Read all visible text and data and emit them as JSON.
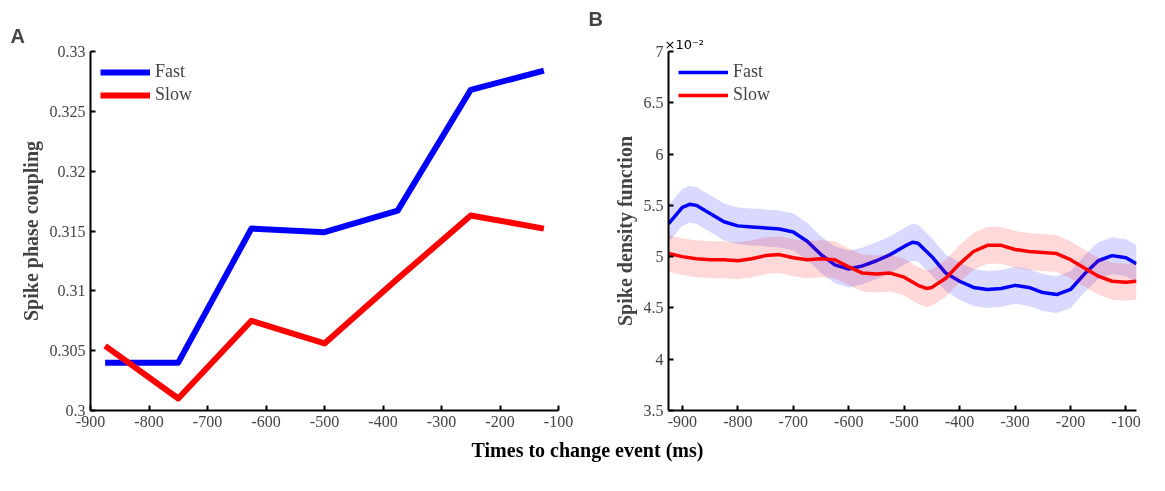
{
  "chart_data": [
    {
      "type": "line",
      "title": "A",
      "xlabel": "Times to change event (ms)",
      "ylabel": "Spike phase coupling",
      "x": [
        -875,
        -750,
        -625,
        -500,
        -375,
        -250,
        -125
      ],
      "series": [
        {
          "name": "Fast",
          "color": "#0000ff",
          "values": [
            0.304,
            0.304,
            0.3152,
            0.3149,
            0.3167,
            0.3268,
            0.3284
          ]
        },
        {
          "name": "Slow",
          "color": "#ff0000",
          "values": [
            0.3054,
            0.301,
            0.3075,
            0.3056,
            0.311,
            0.3163,
            0.3152
          ]
        }
      ],
      "xlim": [
        -900,
        -100
      ],
      "xticks": [
        -900,
        -800,
        -700,
        -600,
        -500,
        -400,
        -300,
        -200,
        -100
      ],
      "ylim": [
        0.3,
        0.33
      ],
      "yticks": [
        0.3,
        0.305,
        0.31,
        0.315,
        0.32,
        0.325,
        0.33
      ],
      "legend": "top left",
      "grid": false
    },
    {
      "type": "line",
      "title": "B",
      "ylabel": "Spike density function",
      "annotations": [
        "×10⁻²"
      ],
      "series": [
        {
          "name": "Fast",
          "color": "#0000ff",
          "x": [
            -925,
            -900,
            -887,
            -875,
            -850,
            -825,
            -800,
            -775,
            -750,
            -725,
            -700,
            -675,
            -650,
            -625,
            -600,
            -575,
            -550,
            -525,
            -500,
            -485,
            -475,
            -450,
            -425,
            -400,
            -375,
            -350,
            -325,
            -300,
            -275,
            -250,
            -225,
            -200,
            -175,
            -150,
            -125,
            -100,
            -81
          ],
          "values": [
            5.32,
            5.48,
            5.51,
            5.5,
            5.42,
            5.34,
            5.3,
            5.29,
            5.28,
            5.27,
            5.24,
            5.15,
            5.02,
            4.92,
            4.88,
            4.91,
            4.96,
            5.02,
            5.1,
            5.14,
            5.13,
            5.0,
            4.84,
            4.76,
            4.7,
            4.68,
            4.69,
            4.72,
            4.7,
            4.65,
            4.63,
            4.68,
            4.83,
            4.96,
            5.01,
            4.99,
            4.93
          ],
          "lower": [
            5.14,
            5.3,
            5.33,
            5.32,
            5.24,
            5.16,
            5.12,
            5.11,
            5.1,
            5.09,
            5.06,
            4.97,
            4.84,
            4.74,
            4.7,
            4.73,
            4.78,
            4.84,
            4.92,
            4.96,
            4.95,
            4.82,
            4.66,
            4.58,
            4.52,
            4.5,
            4.51,
            4.54,
            4.52,
            4.47,
            4.45,
            4.5,
            4.65,
            4.78,
            4.83,
            4.81,
            4.75
          ],
          "upper": [
            5.5,
            5.66,
            5.69,
            5.68,
            5.6,
            5.52,
            5.48,
            5.47,
            5.46,
            5.45,
            5.42,
            5.33,
            5.2,
            5.1,
            5.06,
            5.09,
            5.14,
            5.2,
            5.28,
            5.32,
            5.31,
            5.18,
            5.02,
            4.94,
            4.88,
            4.86,
            4.87,
            4.9,
            4.88,
            4.83,
            4.81,
            4.86,
            5.01,
            5.14,
            5.19,
            5.17,
            5.11
          ]
        },
        {
          "name": "Slow",
          "color": "#ff0000",
          "x": [
            -925,
            -900,
            -875,
            -850,
            -825,
            -800,
            -775,
            -750,
            -725,
            -700,
            -675,
            -650,
            -625,
            -600,
            -575,
            -550,
            -525,
            -500,
            -475,
            -460,
            -450,
            -425,
            -400,
            -375,
            -350,
            -325,
            -300,
            -275,
            -250,
            -225,
            -200,
            -175,
            -150,
            -125,
            -100,
            -81
          ],
          "values": [
            5.03,
            5.0,
            4.98,
            4.97,
            4.97,
            4.96,
            4.98,
            5.01,
            5.02,
            4.99,
            4.97,
            4.98,
            4.97,
            4.9,
            4.84,
            4.83,
            4.84,
            4.8,
            4.72,
            4.69,
            4.7,
            4.79,
            4.93,
            5.05,
            5.11,
            5.11,
            5.07,
            5.05,
            5.04,
            5.03,
            4.97,
            4.89,
            4.81,
            4.76,
            4.75,
            4.76
          ],
          "lower": [
            4.85,
            4.82,
            4.8,
            4.79,
            4.79,
            4.78,
            4.8,
            4.83,
            4.84,
            4.81,
            4.79,
            4.8,
            4.79,
            4.72,
            4.66,
            4.65,
            4.66,
            4.62,
            4.54,
            4.51,
            4.52,
            4.61,
            4.75,
            4.87,
            4.93,
            4.93,
            4.89,
            4.87,
            4.86,
            4.85,
            4.79,
            4.71,
            4.63,
            4.58,
            4.57,
            4.58
          ],
          "upper": [
            5.21,
            5.18,
            5.16,
            5.15,
            5.15,
            5.14,
            5.16,
            5.19,
            5.2,
            5.17,
            5.15,
            5.16,
            5.15,
            5.08,
            5.02,
            5.01,
            5.02,
            4.98,
            4.9,
            4.87,
            4.88,
            4.97,
            5.11,
            5.23,
            5.29,
            5.29,
            5.25,
            5.23,
            5.22,
            5.21,
            5.15,
            5.07,
            4.99,
            4.94,
            4.93,
            4.94
          ]
        }
      ],
      "xlim": [
        -925,
        -81
      ],
      "xticks": [
        -900,
        -800,
        -700,
        -600,
        -500,
        -400,
        -300,
        -200,
        -100
      ],
      "ylim": [
        3.5,
        7
      ],
      "yticks": [
        3.5,
        4,
        4.5,
        5,
        5.5,
        6,
        6.5,
        7
      ],
      "legend": "top left",
      "grid": false
    }
  ]
}
